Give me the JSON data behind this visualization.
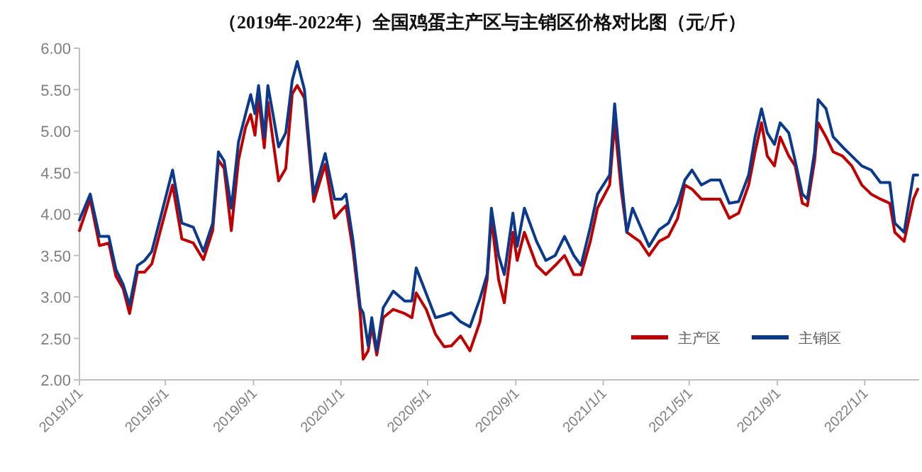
{
  "chart_data": {
    "type": "line",
    "title": "（2019年-2022年）全国鸡蛋主产区与主销区价格对比图（元/斤）",
    "x": [
      "2019-01-01",
      "2019-01-16",
      "2019-01-29",
      "2019-02-11",
      "2019-02-21",
      "2019-03-03",
      "2019-03-12",
      "2019-03-23",
      "2019-04-02",
      "2019-04-12",
      "2019-04-24",
      "2019-05-11",
      "2019-05-24",
      "2019-06-09",
      "2019-06-23",
      "2019-07-06",
      "2019-07-14",
      "2019-07-22",
      "2019-08-01",
      "2019-08-11",
      "2019-08-21",
      "2019-08-28",
      "2019-09-03",
      "2019-09-08",
      "2019-09-16",
      "2019-09-21",
      "2019-09-28",
      "2019-10-06",
      "2019-10-16",
      "2019-10-25",
      "2019-11-01",
      "2019-11-11",
      "2019-11-24",
      "2019-12-10",
      "2019-12-23",
      "2020-01-02",
      "2020-01-08",
      "2020-01-18",
      "2020-01-28",
      "2020-02-01",
      "2020-02-08",
      "2020-02-13",
      "2020-02-20",
      "2020-02-29",
      "2020-03-14",
      "2020-03-30",
      "2020-04-09",
      "2020-04-15",
      "2020-04-29",
      "2020-05-12",
      "2020-05-24",
      "2020-06-03",
      "2020-06-16",
      "2020-06-29",
      "2020-07-13",
      "2020-07-23",
      "2020-07-29",
      "2020-08-08",
      "2020-08-16",
      "2020-08-28",
      "2020-09-03",
      "2020-09-13",
      "2020-09-30",
      "2020-10-13",
      "2020-10-26",
      "2020-11-08",
      "2020-11-21",
      "2020-12-01",
      "2020-12-14",
      "2020-12-24",
      "2021-01-10",
      "2021-01-17",
      "2021-01-26",
      "2021-02-03",
      "2021-02-11",
      "2021-02-21",
      "2021-03-06",
      "2021-03-20",
      "2021-04-02",
      "2021-04-15",
      "2021-04-25",
      "2021-05-05",
      "2021-05-18",
      "2021-05-31",
      "2021-06-13",
      "2021-06-26",
      "2021-07-09",
      "2021-07-23",
      "2021-08-01",
      "2021-08-10",
      "2021-08-18",
      "2021-08-28",
      "2021-09-05",
      "2021-09-17",
      "2021-09-26",
      "2021-10-06",
      "2021-10-13",
      "2021-10-23",
      "2021-10-28",
      "2021-11-08",
      "2021-11-18",
      "2021-12-01",
      "2021-12-14",
      "2021-12-28",
      "2022-01-10",
      "2022-01-23",
      "2022-02-05",
      "2022-02-12",
      "2022-02-25",
      "2022-03-10",
      "2022-03-16"
    ],
    "series": [
      {
        "name": "主产区",
        "color": "#c00000",
        "values": [
          3.8,
          4.18,
          3.62,
          3.65,
          3.25,
          3.1,
          2.8,
          3.3,
          3.3,
          3.4,
          3.8,
          4.35,
          3.7,
          3.65,
          3.45,
          3.8,
          4.65,
          4.55,
          3.8,
          4.65,
          5.05,
          5.2,
          4.95,
          5.4,
          4.8,
          5.35,
          4.9,
          4.4,
          4.55,
          5.45,
          5.55,
          5.4,
          4.15,
          4.6,
          3.95,
          4.05,
          4.1,
          3.55,
          2.8,
          2.25,
          2.35,
          2.65,
          2.3,
          2.75,
          2.85,
          2.8,
          2.75,
          3.05,
          2.85,
          2.55,
          2.4,
          2.41,
          2.53,
          2.35,
          2.7,
          3.21,
          3.95,
          3.21,
          2.93,
          3.78,
          3.44,
          3.78,
          3.38,
          3.27,
          3.38,
          3.5,
          3.27,
          3.27,
          3.67,
          4.07,
          4.35,
          5.1,
          4.3,
          3.78,
          3.73,
          3.67,
          3.5,
          3.67,
          3.73,
          3.95,
          4.35,
          4.3,
          4.18,
          4.18,
          4.18,
          3.95,
          4.01,
          4.35,
          4.75,
          5.1,
          4.7,
          4.58,
          4.93,
          4.7,
          4.58,
          4.13,
          4.1,
          4.64,
          5.1,
          4.93,
          4.75,
          4.7,
          4.58,
          4.35,
          4.24,
          4.18,
          4.13,
          3.78,
          3.67,
          4.18,
          4.3
        ]
      },
      {
        "name": "主销区",
        "color": "#0b3a8c",
        "values": [
          3.93,
          4.24,
          3.73,
          3.73,
          3.33,
          3.15,
          2.9,
          3.38,
          3.44,
          3.55,
          3.95,
          4.53,
          3.89,
          3.84,
          3.55,
          3.89,
          4.75,
          4.64,
          4.07,
          4.87,
          5.21,
          5.44,
          5.21,
          5.55,
          4.93,
          5.55,
          5.21,
          4.81,
          4.98,
          5.61,
          5.84,
          5.5,
          4.24,
          4.73,
          4.18,
          4.18,
          4.24,
          3.67,
          2.87,
          2.81,
          2.41,
          2.75,
          2.35,
          2.87,
          3.07,
          2.95,
          2.95,
          3.35,
          3.04,
          2.75,
          2.78,
          2.81,
          2.7,
          2.64,
          2.98,
          3.27,
          4.07,
          3.5,
          3.27,
          4.01,
          3.61,
          4.07,
          3.67,
          3.44,
          3.5,
          3.73,
          3.5,
          3.38,
          3.84,
          4.24,
          4.47,
          5.33,
          4.47,
          3.78,
          4.07,
          3.87,
          3.61,
          3.81,
          3.89,
          4.13,
          4.41,
          4.53,
          4.35,
          4.41,
          4.41,
          4.13,
          4.15,
          4.47,
          4.93,
          5.27,
          4.98,
          4.84,
          5.1,
          4.98,
          4.64,
          4.24,
          4.18,
          4.75,
          5.38,
          5.27,
          4.93,
          4.81,
          4.7,
          4.58,
          4.53,
          4.38,
          4.38,
          3.89,
          3.78,
          4.47,
          4.47
        ]
      }
    ],
    "xlim": [
      "2019-01-01",
      "2022-03-18"
    ],
    "xticks": [
      {
        "value": "2019-01-01",
        "label": "2019/1/1"
      },
      {
        "value": "2019-05-01",
        "label": "2019/5/1"
      },
      {
        "value": "2019-09-01",
        "label": "2019/9/1"
      },
      {
        "value": "2020-01-01",
        "label": "2020/1/1"
      },
      {
        "value": "2020-05-01",
        "label": "2020/5/1"
      },
      {
        "value": "2020-09-01",
        "label": "2020/9/1"
      },
      {
        "value": "2021-01-01",
        "label": "2021/1/1"
      },
      {
        "value": "2021-05-01",
        "label": "2021/5/1"
      },
      {
        "value": "2021-09-01",
        "label": "2021/9/1"
      },
      {
        "value": "2022-01-01",
        "label": "2022/1/1"
      }
    ],
    "ylim": [
      2,
      6
    ],
    "yticks": [
      {
        "value": 2,
        "label": "2.00"
      },
      {
        "value": 2.5,
        "label": "2.50"
      },
      {
        "value": 3,
        "label": "3.00"
      },
      {
        "value": 3.5,
        "label": "3.50"
      },
      {
        "value": 4,
        "label": "4.00"
      },
      {
        "value": 4.5,
        "label": "4.50"
      },
      {
        "value": 5,
        "label": "5.00"
      },
      {
        "value": 5.5,
        "label": "5.50"
      },
      {
        "value": 6,
        "label": "6.00"
      }
    ],
    "legend": "bottom right"
  }
}
